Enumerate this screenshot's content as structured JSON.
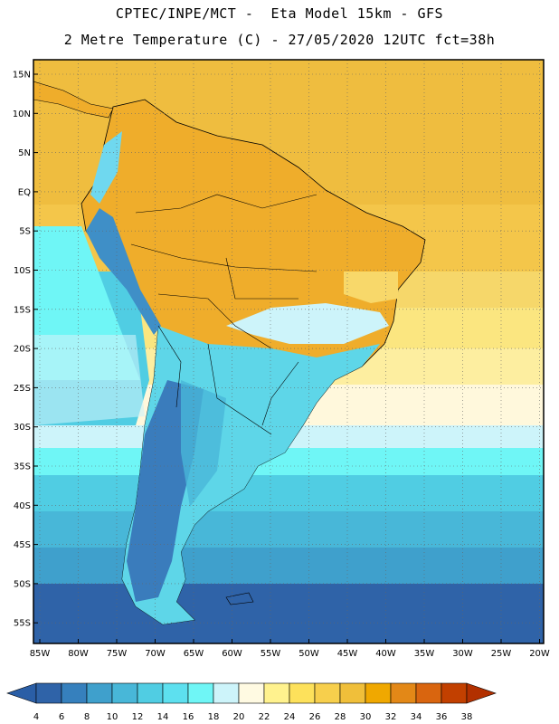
{
  "title_line1": "CPTEC/INPE/MCT -  Eta Model 15km - GFS",
  "title_line2": "2 Metre Temperature (C) - 27/05/2020 12UTC fct=38h",
  "lat_labels": [
    "15N",
    "10N",
    "5N",
    "EQ",
    "5S",
    "10S",
    "15S",
    "20S",
    "25S",
    "30S",
    "35S",
    "40S",
    "45S",
    "50S",
    "55S"
  ],
  "lon_labels": [
    "85W",
    "80W",
    "75W",
    "70W",
    "65W",
    "60W",
    "55W",
    "50W",
    "45W",
    "40W",
    "35W",
    "30W",
    "25W",
    "20W"
  ],
  "colorbar": {
    "ticks": [
      "4",
      "6",
      "8",
      "10",
      "12",
      "14",
      "16",
      "18",
      "20",
      "22",
      "24",
      "26",
      "28",
      "30",
      "32",
      "34",
      "36",
      "38"
    ],
    "under_color": "#2a5ea6",
    "over_color": "#b23000",
    "colors": [
      "#2f63a8",
      "#3680bd",
      "#3fa0cc",
      "#48b7d8",
      "#50cde3",
      "#5de0ef",
      "#6ff6f6",
      "#cdf4fa",
      "#fffae2",
      "#fff28e",
      "#fde15b",
      "#f7cf4c",
      "#f0bf3a",
      "#f0a800",
      "#e38817",
      "#d9650f",
      "#c24000"
    ]
  }
}
